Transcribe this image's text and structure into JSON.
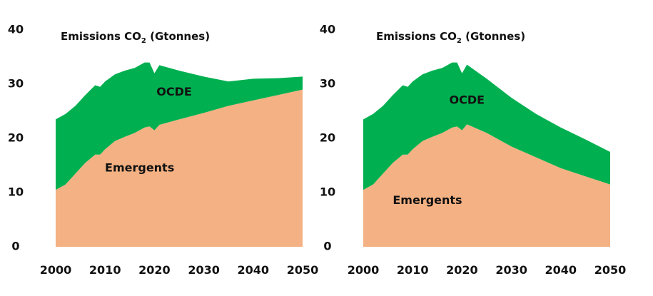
{
  "chart_data": [
    {
      "type": "area",
      "stacked": true,
      "title": "Emissions CO2 (Gtonnes)",
      "title_main": "Emissions CO",
      "title_sub": "2",
      "title_rest": " (Gtonnes)",
      "xlim": [
        2000,
        2050
      ],
      "ylim": [
        0,
        40
      ],
      "xticks": [
        "2000",
        "2010",
        "2020",
        "2030",
        "2040",
        "2050"
      ],
      "yticks": [
        "0",
        "10",
        "20",
        "30",
        "40"
      ],
      "grid": false,
      "x": [
        2000,
        2002,
        2004,
        2006,
        2008,
        2009,
        2010,
        2012,
        2014,
        2016,
        2018,
        2019,
        2020,
        2021,
        2025,
        2030,
        2035,
        2040,
        2045,
        2050
      ],
      "series": [
        {
          "name": "Emergents",
          "color": "#f4b183",
          "label_at": [
            2017,
            14.5
          ],
          "values": [
            10.5,
            11.5,
            13.5,
            15.5,
            17.0,
            17.0,
            18.0,
            19.5,
            20.3,
            21.0,
            22.0,
            22.2,
            21.5,
            22.5,
            23.5,
            24.7,
            26.0,
            27.0,
            28.0,
            29.0
          ]
        },
        {
          "name": "OCDE",
          "color": "#00b050",
          "label_at": [
            2024,
            28.5
          ],
          "values": [
            13.0,
            13.0,
            12.5,
            12.5,
            12.8,
            12.5,
            12.5,
            12.3,
            12.2,
            12.0,
            12.0,
            11.8,
            10.5,
            11.0,
            9.0,
            6.7,
            4.5,
            4.0,
            3.1,
            2.4
          ]
        }
      ]
    },
    {
      "type": "area",
      "stacked": true,
      "title": "Emissions CO2 (Gtonnes)",
      "title_main": "Emissions CO",
      "title_sub": "2",
      "title_rest": " (Gtonnes)",
      "xlim": [
        2000,
        2050
      ],
      "ylim": [
        0,
        40
      ],
      "xticks": [
        "2000",
        "2010",
        "2020",
        "2030",
        "2040",
        "2050"
      ],
      "yticks": [
        "0",
        "10",
        "20",
        "30",
        "40"
      ],
      "grid": false,
      "x": [
        2000,
        2002,
        2004,
        2006,
        2008,
        2009,
        2010,
        2012,
        2014,
        2016,
        2018,
        2019,
        2020,
        2021,
        2025,
        2030,
        2035,
        2040,
        2045,
        2050
      ],
      "series": [
        {
          "name": "Emergents",
          "color": "#f4b183",
          "label_at": [
            2013,
            8.5
          ],
          "values": [
            10.5,
            11.5,
            13.5,
            15.5,
            17.0,
            17.0,
            18.0,
            19.5,
            20.3,
            21.0,
            22.0,
            22.2,
            21.5,
            22.6,
            21.0,
            18.5,
            16.5,
            14.5,
            13.0,
            11.5
          ]
        },
        {
          "name": "OCDE",
          "color": "#00b050",
          "label_at": [
            2021,
            27.0
          ],
          "values": [
            13.0,
            13.0,
            12.5,
            12.5,
            12.8,
            12.5,
            12.5,
            12.3,
            12.2,
            12.0,
            12.0,
            11.8,
            10.5,
            11.0,
            10.0,
            9.0,
            8.0,
            7.5,
            6.8,
            6.0
          ]
        }
      ]
    }
  ]
}
